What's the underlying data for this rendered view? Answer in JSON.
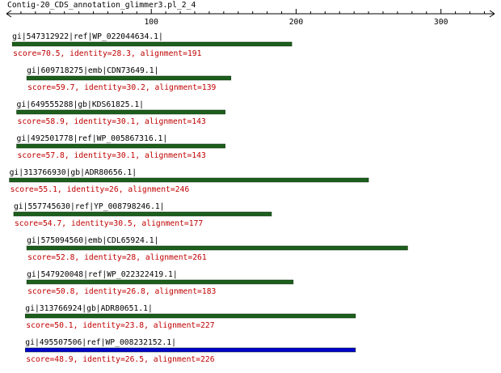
{
  "chart_data": {
    "type": "alignment",
    "title": "Contig-20_CDS_annotation_glimmer3.pl_2_4",
    "xlim": [
      0,
      337
    ],
    "xticks": [
      100,
      200,
      300
    ],
    "xminorticks": [
      10,
      20,
      30,
      40,
      50,
      60,
      70,
      80,
      90,
      110,
      120,
      130,
      140,
      150,
      160,
      170,
      180,
      190,
      210,
      220,
      230,
      240,
      250,
      260,
      270,
      280,
      290,
      310,
      320,
      330
    ],
    "hits": [
      {
        "name": "gi|547312922|ref|WP_022044634.1|",
        "label": "score=70.5, identity=28.3, alignment=191",
        "start": 4,
        "end": 197,
        "color": "#1c5e1c"
      },
      {
        "name": "gi|609718275|emb|CDN73649.1|",
        "label": "score=59.7, identity=30.2, alignment=139",
        "start": 14,
        "end": 155,
        "color": "#1c5e1c"
      },
      {
        "name": "gi|649555288|gb|KDS61825.1|",
        "label": "score=58.9, identity=30.1, alignment=143",
        "start": 7,
        "end": 151,
        "color": "#1c5e1c"
      },
      {
        "name": "gi|492501778|ref|WP_005867316.1|",
        "label": "score=57.8, identity=30.1, alignment=143",
        "start": 7,
        "end": 151,
        "color": "#1c5e1c"
      },
      {
        "name": "gi|313766930|gb|ADR80656.1|",
        "label": "score=55.1, identity=26, alignment=246",
        "start": 2,
        "end": 250,
        "color": "#1c5e1c"
      },
      {
        "name": "gi|557745630|ref|YP_008798246.1|",
        "label": "score=54.7, identity=30.5, alignment=177",
        "start": 5,
        "end": 183,
        "color": "#1c5e1c"
      },
      {
        "name": "gi|575094560|emb|CDL65924.1|",
        "label": "score=52.8, identity=28, alignment=261",
        "start": 14,
        "end": 277,
        "color": "#1c5e1c"
      },
      {
        "name": "gi|547920048|ref|WP_022322419.1|",
        "label": "score=50.8, identity=26.8, alignment=183",
        "start": 14,
        "end": 198,
        "color": "#1c5e1c"
      },
      {
        "name": "gi|313766924|gb|ADR80651.1|",
        "label": "score=50.1, identity=23.8, alignment=227",
        "start": 13,
        "end": 241,
        "color": "#1c5e1c"
      },
      {
        "name": "gi|495507506|ref|WP_008232152.1|",
        "label": "score=48.9, identity=26.5, alignment=226",
        "start": 13,
        "end": 241,
        "color": "#0000cc"
      }
    ]
  }
}
